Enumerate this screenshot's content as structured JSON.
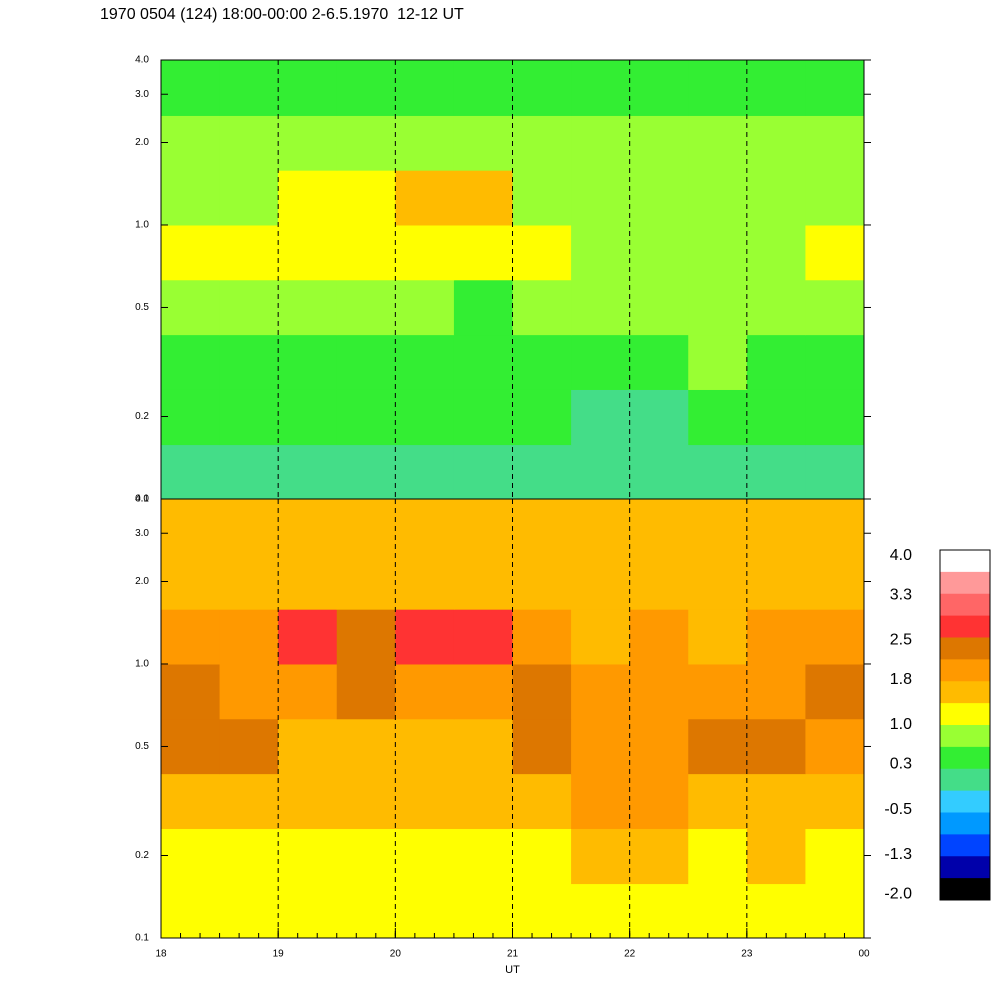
{
  "title": "1970 0504 (124) 18:00-00:00 2-6.5.1970  12-12 UT",
  "chart_data": [
    {
      "type": "heatmap",
      "log_y": true,
      "grid": true,
      "xlim": [
        18,
        24
      ],
      "xticks": [
        18,
        19,
        20,
        21,
        22,
        23,
        {
          "value": 24,
          "label": "00"
        }
      ],
      "ylim": [
        0.1,
        4
      ],
      "yticks": [
        0.1,
        0.2,
        0.5,
        {
          "value": 1,
          "label": "1.0"
        },
        {
          "value": 2,
          "label": "2.0"
        },
        {
          "value": 3,
          "label": "3.0"
        },
        {
          "value": 4,
          "label": "4.0"
        }
      ],
      "xbins": [
        18,
        18.5,
        19,
        19.5,
        20,
        20.5,
        21,
        21.5,
        22,
        22.5,
        23,
        23.5,
        24
      ],
      "ybins": [
        0.1,
        0.158,
        0.251,
        0.398,
        0.631,
        1.0,
        1.585,
        2.51,
        4.0
      ],
      "z": [
        [
          0.1,
          0.1,
          0.2,
          0.2,
          0.2,
          0.2,
          0.1,
          0.0,
          0.1,
          0.0,
          0.1,
          0.1
        ],
        [
          0.3,
          0.3,
          0.3,
          0.3,
          0.3,
          0.3,
          0.4,
          0.1,
          0.2,
          0.3,
          0.3,
          0.3
        ],
        [
          0.4,
          0.4,
          0.4,
          0.4,
          0.4,
          0.4,
          0.5,
          0.6,
          0.6,
          0.7,
          0.6,
          0.5
        ],
        [
          0.8,
          0.7,
          0.8,
          0.7,
          0.7,
          0.6,
          0.8,
          0.8,
          0.7,
          0.8,
          0.7,
          0.7
        ],
        [
          1.0,
          1.0,
          1.3,
          1.2,
          1.1,
          1.2,
          1.0,
          0.9,
          0.8,
          0.9,
          0.9,
          1.0
        ],
        [
          0.9,
          0.9,
          1.0,
          1.0,
          1.4,
          1.4,
          0.9,
          0.8,
          0.8,
          0.9,
          0.8,
          0.9
        ],
        [
          0.7,
          0.7,
          0.8,
          0.8,
          0.9,
          0.7,
          0.7,
          0.7,
          0.7,
          0.8,
          0.7,
          0.7
        ],
        [
          0.5,
          0.5,
          0.4,
          0.5,
          0.5,
          0.5,
          0.4,
          0.5,
          0.4,
          0.5,
          0.4,
          0.5
        ]
      ]
    },
    {
      "type": "heatmap",
      "log_y": true,
      "grid": true,
      "xlabel": "UT",
      "xlim": [
        18,
        24
      ],
      "xticks": [
        18,
        19,
        20,
        21,
        22,
        23,
        {
          "value": 24,
          "label": "00"
        }
      ],
      "ylim": [
        0.1,
        4
      ],
      "yticks": [
        0.1,
        0.2,
        0.5,
        {
          "value": 1,
          "label": "1.0"
        },
        {
          "value": 2,
          "label": "2.0"
        },
        {
          "value": 3,
          "label": "3.0"
        },
        {
          "value": 4,
          "label": "4.0"
        }
      ],
      "xbins": [
        18,
        18.5,
        19,
        19.5,
        20,
        20.5,
        21,
        21.5,
        22,
        22.5,
        23,
        23.5,
        24
      ],
      "ybins": [
        0.1,
        0.158,
        0.251,
        0.398,
        0.631,
        1.0,
        1.585,
        2.51,
        4.0
      ],
      "z": [
        [
          1.0,
          1.0,
          1.0,
          1.0,
          1.0,
          1.0,
          1.1,
          1.2,
          1.1,
          1.0,
          1.1,
          1.1
        ],
        [
          1.2,
          1.2,
          1.2,
          1.2,
          1.2,
          1.2,
          1.3,
          1.6,
          1.4,
          1.3,
          1.4,
          1.3
        ],
        [
          1.5,
          1.5,
          1.4,
          1.4,
          1.4,
          1.4,
          1.5,
          1.9,
          1.8,
          1.6,
          1.7,
          1.6
        ],
        [
          2.3,
          2.2,
          1.6,
          1.6,
          1.6,
          1.6,
          2.2,
          2.0,
          2.1,
          2.2,
          2.2,
          2.0
        ],
        [
          2.2,
          2.1,
          2.0,
          2.3,
          1.8,
          1.9,
          2.2,
          2.0,
          1.8,
          1.8,
          1.9,
          2.2
        ],
        [
          1.8,
          1.8,
          2.6,
          2.4,
          2.6,
          2.6,
          1.8,
          1.7,
          1.8,
          1.7,
          1.8,
          1.8
        ],
        [
          1.6,
          1.6,
          1.7,
          1.6,
          1.7,
          1.6,
          1.6,
          1.6,
          1.7,
          1.6,
          1.6,
          1.7
        ],
        [
          1.4,
          1.4,
          1.5,
          1.4,
          1.4,
          1.5,
          1.4,
          1.4,
          1.5,
          1.4,
          1.4,
          1.4
        ]
      ]
    }
  ],
  "colorbar": {
    "clim": [
      -2.1,
      4.1
    ],
    "colors": [
      "#ffffff",
      "#ff9999",
      "#ff6666",
      "#ff3333",
      "#dd7700",
      "#ff9900",
      "#ffbb00",
      "#ffff00",
      "#99ff33",
      "#33ee33",
      "#44dd88",
      "#33ccff",
      "#0099ff",
      "#0044ff",
      "#0000aa",
      "#000000"
    ],
    "ticks": [
      {
        "value": 4,
        "label": "4.0"
      },
      3.3,
      2.5,
      1.8,
      {
        "value": 1,
        "label": "1.0"
      },
      0.3,
      -0.5,
      -1.3,
      {
        "value": -2,
        "label": "-2.0"
      }
    ]
  }
}
